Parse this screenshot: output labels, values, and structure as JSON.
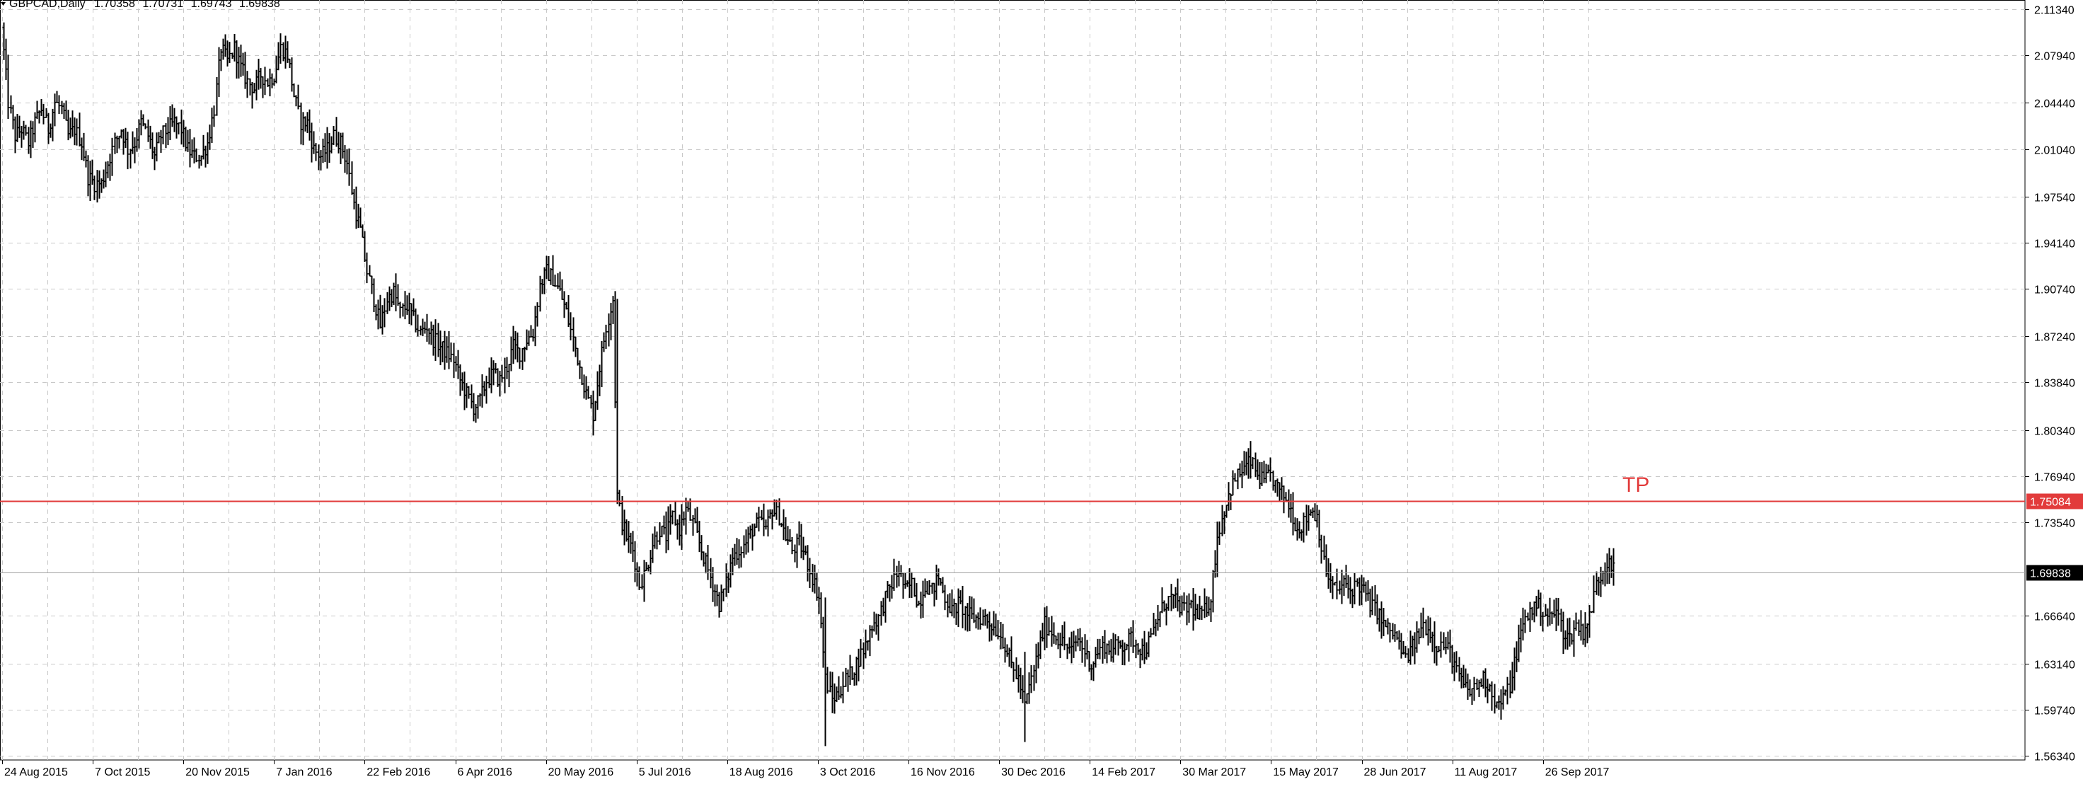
{
  "header": {
    "symbol": "GBPCAD,Daily",
    "open": "1.70358",
    "high": "1.70731",
    "low": "1.69743",
    "close": "1.69838"
  },
  "chart_data": {
    "type": "ohlc",
    "ylim": [
      1.5634,
      2.1134
    ],
    "grid": true,
    "y_ticks": [
      "2.11340",
      "2.07940",
      "2.04440",
      "2.01040",
      "1.97540",
      "1.94140",
      "1.90740",
      "1.87240",
      "1.83840",
      "1.80340",
      "1.76940",
      "1.73540",
      "1.66640",
      "1.63140",
      "1.59740",
      "1.56340"
    ],
    "x_labels": [
      "24 Aug 2015",
      "7 Oct 2015",
      "20 Nov 2015",
      "7 Jan 2016",
      "22 Feb 2016",
      "6 Apr 2016",
      "20 May 2016",
      "5 Jul 2016",
      "18 Aug 2016",
      "3 Oct 2016",
      "16 Nov 2016",
      "30 Dec 2016",
      "14 Feb 2017",
      "30 Mar 2017",
      "15 May 2017",
      "28 Jun 2017",
      "11 Aug 2017",
      "26 Sep 2017"
    ],
    "lines": [
      {
        "name": "TP",
        "value": 1.75084,
        "label": "1.75084",
        "color": "#e23b3b"
      },
      {
        "name": "current",
        "value": 1.69838,
        "label": "1.69838",
        "color": "#a0a0a0"
      }
    ],
    "annotation": "TP",
    "colors": {
      "bars": "#000000",
      "grid": "#c8c8c8",
      "tp": "#e23b3b"
    },
    "series": [
      {
        "values": [
          [
            0,
            2.1
          ],
          [
            5,
            2.045
          ],
          [
            10,
            2.02
          ],
          [
            15,
            2.025
          ],
          [
            20,
            2.015
          ],
          [
            25,
            2.03
          ],
          [
            30,
            2.04
          ],
          [
            35,
            2.025
          ],
          [
            40,
            2.045
          ],
          [
            45,
            2.04
          ],
          [
            50,
            2.02
          ],
          [
            55,
            2.025
          ],
          [
            60,
            2.015
          ],
          [
            65,
            1.99
          ],
          [
            70,
            1.985
          ],
          [
            75,
            1.985
          ],
          [
            80,
            2.0
          ],
          [
            85,
            2.015
          ],
          [
            90,
            2.025
          ],
          [
            95,
            2.01
          ],
          [
            100,
            2.015
          ],
          [
            105,
            2.03
          ],
          [
            110,
            2.02
          ],
          [
            115,
            2.005
          ],
          [
            120,
            2.02
          ],
          [
            125,
            2.025
          ],
          [
            130,
            2.03
          ],
          [
            135,
            2.025
          ],
          [
            140,
            2.01
          ],
          [
            145,
            2.005
          ],
          [
            150,
            2.005
          ],
          [
            155,
            2.015
          ],
          [
            160,
            2.04
          ],
          [
            165,
            2.085
          ],
          [
            170,
            2.075
          ],
          [
            175,
            2.085
          ],
          [
            180,
            2.07
          ],
          [
            185,
            2.06
          ],
          [
            190,
            2.055
          ],
          [
            195,
            2.065
          ],
          [
            200,
            2.06
          ],
          [
            205,
            2.065
          ],
          [
            210,
            2.085
          ],
          [
            215,
            2.08
          ],
          [
            220,
            2.05
          ],
          [
            225,
            2.03
          ],
          [
            230,
            2.03
          ],
          [
            235,
            2.01
          ],
          [
            240,
            2.005
          ],
          [
            245,
            2.01
          ],
          [
            250,
            2.02
          ],
          [
            255,
            2.015
          ],
          [
            260,
            2.0
          ],
          [
            265,
            1.97
          ],
          [
            270,
            1.95
          ],
          [
            275,
            1.92
          ],
          [
            280,
            1.9
          ],
          [
            285,
            1.88
          ],
          [
            290,
            1.9
          ],
          [
            295,
            1.905
          ],
          [
            300,
            1.89
          ],
          [
            305,
            1.895
          ],
          [
            310,
            1.885
          ],
          [
            315,
            1.875
          ],
          [
            320,
            1.88
          ],
          [
            325,
            1.87
          ],
          [
            330,
            1.865
          ],
          [
            335,
            1.86
          ],
          [
            340,
            1.855
          ],
          [
            345,
            1.84
          ],
          [
            350,
            1.83
          ],
          [
            355,
            1.82
          ],
          [
            360,
            1.825
          ],
          [
            365,
            1.84
          ],
          [
            370,
            1.845
          ],
          [
            375,
            1.84
          ],
          [
            380,
            1.85
          ],
          [
            385,
            1.865
          ],
          [
            390,
            1.86
          ],
          [
            395,
            1.87
          ],
          [
            400,
            1.875
          ],
          [
            405,
            1.91
          ],
          [
            410,
            1.92
          ],
          [
            415,
            1.915
          ],
          [
            420,
            1.905
          ],
          [
            425,
            1.89
          ],
          [
            430,
            1.87
          ],
          [
            435,
            1.85
          ],
          [
            440,
            1.83
          ],
          [
            445,
            1.815
          ],
          [
            450,
            1.85
          ],
          [
            455,
            1.88
          ],
          [
            460,
            1.9
          ],
          [
            463,
            1.755
          ],
          [
            467,
            1.735
          ],
          [
            470,
            1.725
          ],
          [
            475,
            1.715
          ],
          [
            480,
            1.69
          ],
          [
            485,
            1.7
          ],
          [
            490,
            1.72
          ],
          [
            495,
            1.73
          ],
          [
            500,
            1.725
          ],
          [
            505,
            1.74
          ],
          [
            510,
            1.73
          ],
          [
            515,
            1.745
          ],
          [
            520,
            1.735
          ],
          [
            525,
            1.72
          ],
          [
            530,
            1.705
          ],
          [
            535,
            1.69
          ],
          [
            540,
            1.675
          ],
          [
            545,
            1.69
          ],
          [
            550,
            1.71
          ],
          [
            555,
            1.715
          ],
          [
            560,
            1.72
          ],
          [
            565,
            1.73
          ],
          [
            570,
            1.735
          ],
          [
            575,
            1.73
          ],
          [
            580,
            1.745
          ],
          [
            585,
            1.74
          ],
          [
            590,
            1.725
          ],
          [
            595,
            1.715
          ],
          [
            600,
            1.72
          ],
          [
            605,
            1.71
          ],
          [
            610,
            1.695
          ],
          [
            615,
            1.68
          ],
          [
            620,
            1.62
          ],
          [
            625,
            1.605
          ],
          [
            630,
            1.61
          ],
          [
            635,
            1.62
          ],
          [
            640,
            1.625
          ],
          [
            645,
            1.635
          ],
          [
            650,
            1.645
          ],
          [
            655,
            1.66
          ],
          [
            660,
            1.665
          ],
          [
            665,
            1.68
          ],
          [
            670,
            1.69
          ],
          [
            675,
            1.7
          ],
          [
            680,
            1.685
          ],
          [
            685,
            1.69
          ],
          [
            690,
            1.675
          ],
          [
            695,
            1.69
          ],
          [
            700,
            1.685
          ],
          [
            705,
            1.695
          ],
          [
            710,
            1.68
          ],
          [
            715,
            1.67
          ],
          [
            720,
            1.675
          ],
          [
            725,
            1.67
          ],
          [
            730,
            1.665
          ],
          [
            735,
            1.665
          ],
          [
            740,
            1.665
          ],
          [
            745,
            1.66
          ],
          [
            750,
            1.655
          ],
          [
            755,
            1.645
          ],
          [
            760,
            1.63
          ],
          [
            765,
            1.62
          ],
          [
            770,
            1.6
          ],
          [
            775,
            1.62
          ],
          [
            780,
            1.64
          ],
          [
            785,
            1.66
          ],
          [
            790,
            1.655
          ],
          [
            795,
            1.65
          ],
          [
            800,
            1.645
          ],
          [
            805,
            1.64
          ],
          [
            810,
            1.65
          ],
          [
            815,
            1.64
          ],
          [
            820,
            1.63
          ],
          [
            825,
            1.64
          ],
          [
            830,
            1.645
          ],
          [
            835,
            1.64
          ],
          [
            840,
            1.645
          ],
          [
            845,
            1.645
          ],
          [
            850,
            1.65
          ],
          [
            855,
            1.645
          ],
          [
            860,
            1.64
          ],
          [
            865,
            1.65
          ],
          [
            870,
            1.665
          ],
          [
            875,
            1.675
          ],
          [
            880,
            1.68
          ],
          [
            885,
            1.675
          ],
          [
            890,
            1.67
          ],
          [
            895,
            1.675
          ],
          [
            900,
            1.665
          ],
          [
            905,
            1.67
          ],
          [
            910,
            1.68
          ],
          [
            915,
            1.725
          ],
          [
            920,
            1.745
          ],
          [
            925,
            1.76
          ],
          [
            930,
            1.77
          ],
          [
            935,
            1.775
          ],
          [
            940,
            1.78
          ],
          [
            945,
            1.77
          ],
          [
            950,
            1.765
          ],
          [
            955,
            1.77
          ],
          [
            960,
            1.76
          ],
          [
            965,
            1.755
          ],
          [
            970,
            1.745
          ],
          [
            975,
            1.73
          ],
          [
            980,
            1.735
          ],
          [
            985,
            1.745
          ],
          [
            990,
            1.74
          ],
          [
            995,
            1.705
          ],
          [
            1000,
            1.69
          ],
          [
            1005,
            1.685
          ],
          [
            1010,
            1.69
          ],
          [
            1015,
            1.685
          ],
          [
            1020,
            1.69
          ],
          [
            1025,
            1.685
          ],
          [
            1030,
            1.675
          ],
          [
            1035,
            1.67
          ],
          [
            1040,
            1.66
          ],
          [
            1045,
            1.655
          ],
          [
            1050,
            1.65
          ],
          [
            1055,
            1.635
          ],
          [
            1060,
            1.64
          ],
          [
            1065,
            1.65
          ],
          [
            1070,
            1.66
          ],
          [
            1075,
            1.655
          ],
          [
            1080,
            1.645
          ],
          [
            1085,
            1.645
          ],
          [
            1090,
            1.64
          ],
          [
            1095,
            1.625
          ],
          [
            1100,
            1.615
          ],
          [
            1105,
            1.61
          ],
          [
            1110,
            1.615
          ],
          [
            1115,
            1.62
          ],
          [
            1120,
            1.615
          ],
          [
            1125,
            1.6
          ],
          [
            1130,
            1.605
          ],
          [
            1135,
            1.615
          ],
          [
            1140,
            1.64
          ],
          [
            1145,
            1.66
          ],
          [
            1150,
            1.67
          ],
          [
            1155,
            1.675
          ],
          [
            1160,
            1.67
          ],
          [
            1165,
            1.665
          ],
          [
            1170,
            1.67
          ],
          [
            1175,
            1.655
          ],
          [
            1180,
            1.65
          ],
          [
            1185,
            1.66
          ],
          [
            1190,
            1.655
          ],
          [
            1195,
            1.665
          ],
          [
            1200,
            1.69
          ],
          [
            1205,
            1.7
          ],
          [
            1210,
            1.71
          ],
          [
            1213,
            1.7
          ]
        ]
      }
    ]
  }
}
